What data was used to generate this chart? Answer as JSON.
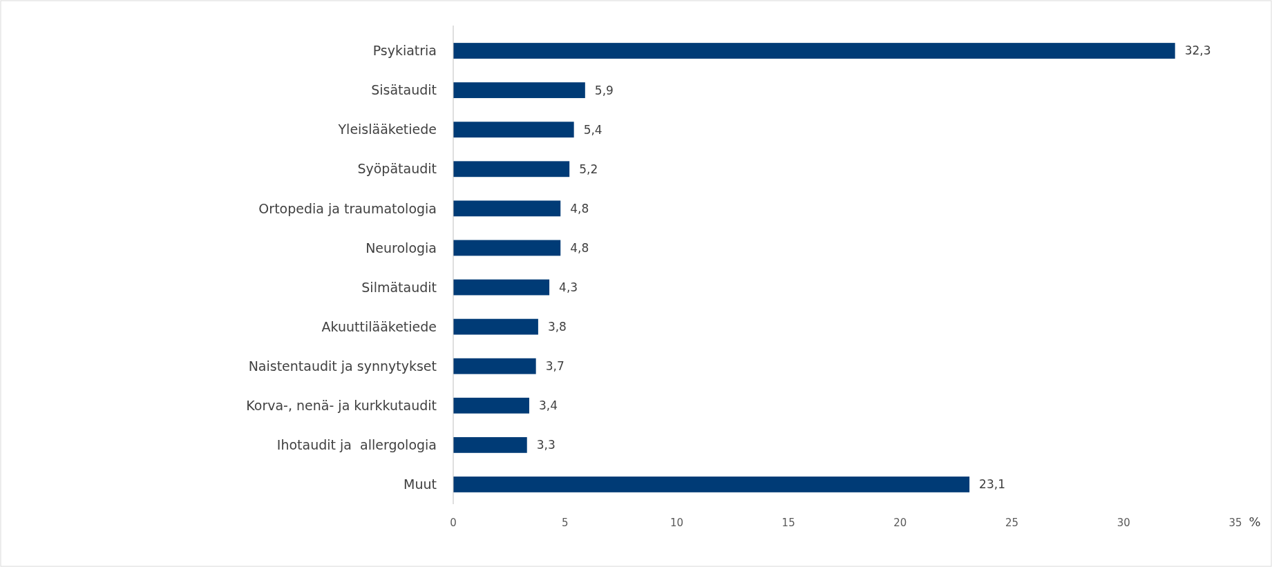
{
  "chart_data": {
    "type": "bar",
    "orientation": "horizontal",
    "xlabel": "%",
    "categories": [
      "Psykiatria",
      "Sisätaudit",
      "Yleislääketiede",
      "Syöpätaudit",
      "Ortopedia ja traumatologia",
      "Neurologia",
      "Silmätaudit",
      "Akuuttilääketiede",
      "Naistentaudit ja synnytykset",
      "Korva-, nenä- ja kurkkutaudit",
      "Ihotaudit ja  allergologia",
      "Muut"
    ],
    "values": [
      32.3,
      5.9,
      5.4,
      5.2,
      4.8,
      4.8,
      4.3,
      3.8,
      3.7,
      3.4,
      3.3,
      23.1
    ],
    "value_labels": [
      "32,3",
      "5,9",
      "5,4",
      "5,2",
      "4,8",
      "4,8",
      "4,3",
      "3,8",
      "3,7",
      "3,4",
      "3,3",
      "23,1"
    ],
    "color": "#003b76",
    "xlim": [
      0,
      35
    ],
    "xticks": [
      0,
      5,
      10,
      15,
      20,
      25,
      30,
      35
    ]
  }
}
